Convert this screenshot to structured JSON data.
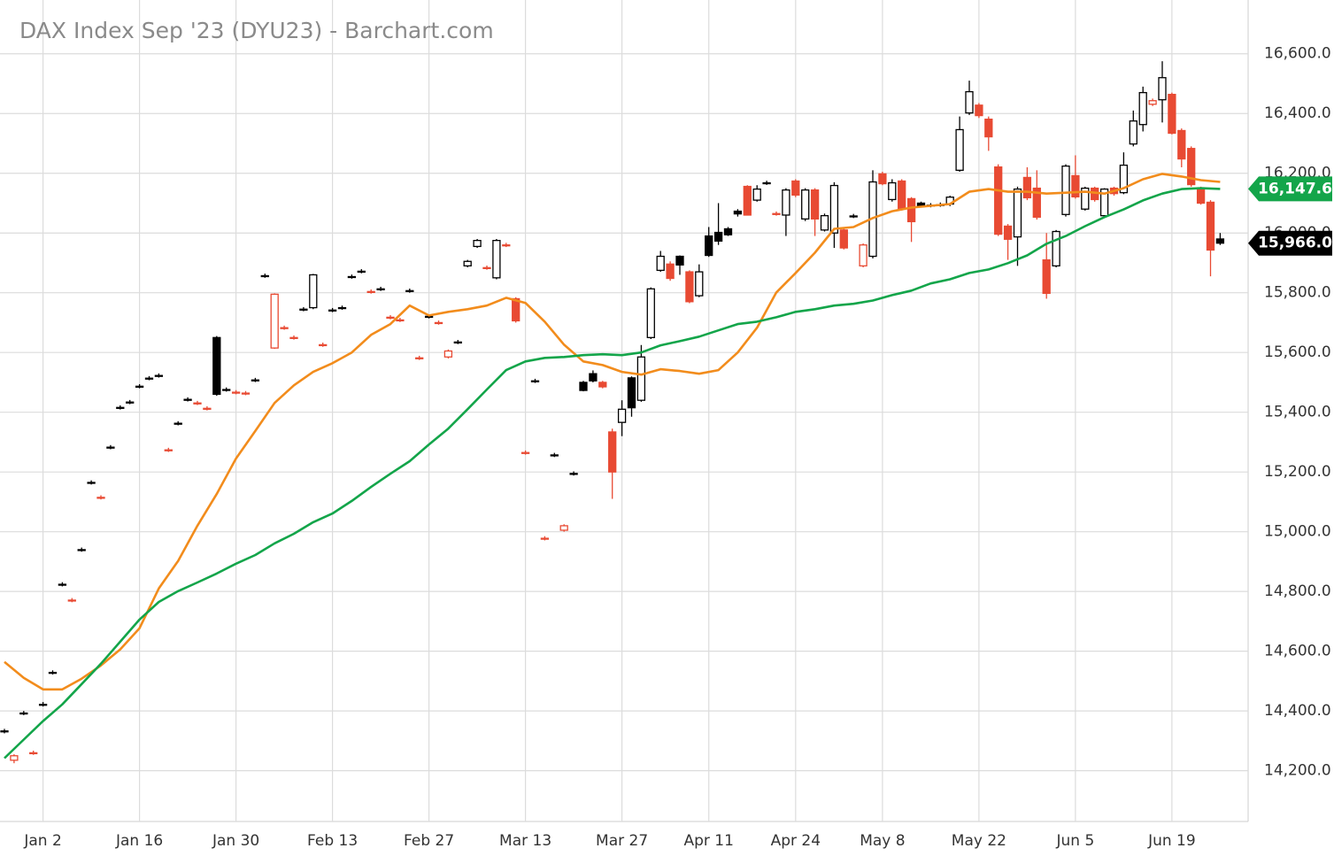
{
  "chart_data": {
    "type": "candlestick",
    "title": "DAX Index Sep '23 (DYU23) - Barchart.com",
    "categories": [
      null,
      null,
      null,
      null,
      "Jan 2",
      null,
      null,
      null,
      null,
      null,
      null,
      null,
      null,
      null,
      "Jan 16",
      null,
      null,
      null,
      null,
      null,
      null,
      null,
      null,
      null,
      "Jan 30",
      null,
      null,
      null,
      null,
      null,
      null,
      null,
      null,
      null,
      "Feb 13",
      null,
      null,
      null,
      null,
      null,
      null,
      null,
      null,
      null,
      "Feb 27",
      null,
      null,
      null,
      null,
      null,
      null,
      null,
      null,
      null,
      "Mar 13",
      null,
      null,
      null,
      null,
      null,
      null,
      null,
      null,
      null,
      "Mar 27",
      null,
      null,
      null,
      null,
      null,
      null,
      null,
      null,
      "Apr 11",
      null,
      null,
      null,
      null,
      null,
      null,
      null,
      null,
      "Apr 24",
      null,
      null,
      null,
      null,
      null,
      null,
      null,
      null,
      "May 8",
      null,
      null,
      null,
      null,
      null,
      null,
      null,
      null,
      null,
      "May 22",
      null,
      null,
      null,
      null,
      null,
      null,
      null,
      null,
      null,
      "Jun 5",
      null,
      null,
      null,
      null,
      null,
      null,
      null,
      null,
      null,
      "Jun 19",
      null,
      null,
      null,
      null,
      null
    ],
    "open": [
      14333,
      14235,
      14393,
      14260,
      14422,
      14529,
      14824,
      14771,
      14940,
      15165,
      15115,
      15283,
      15416,
      15434,
      15487,
      15514,
      15523,
      15274,
      15363,
      15443,
      15431,
      15413,
      15650,
      15476,
      15467,
      15464,
      15508,
      15857,
      15615,
      15683,
      15650,
      15745,
      15750,
      15626,
      15742,
      15750,
      15854,
      15872,
      15804,
      15813,
      15718,
      15709,
      15807,
      15582,
      15721,
      15700,
      15585,
      15635,
      15890,
      15955,
      15884,
      15850,
      15960,
      15780,
      15265,
      15505,
      14978,
      15257,
      15005,
      15195,
      15500,
      15529,
      15500,
      15334,
      15366,
      15515,
      15440,
      15650,
      15875,
      15896,
      15922,
      15870,
      15790,
      15990,
      16002,
      16014,
      16073,
      16156,
      16110,
      16168,
      16065,
      16060,
      16174,
      16047,
      16144,
      16010,
      16000,
      16010,
      16057,
      15890,
      15922,
      16198,
      16112,
      16174,
      16115,
      16100,
      16093,
      16095,
      16097,
      16210,
      16402,
      16428,
      16381,
      16221,
      16023,
      15987,
      16186,
      16150,
      15910,
      15890,
      16062,
      16192,
      16080,
      16150,
      16058,
      16150,
      16135,
      16298,
      16363,
      16431,
      16446,
      16464,
      16343,
      16283,
      16147,
      16103,
      15980
    ],
    "high": [
      14340,
      14255,
      14400,
      14267,
      14430,
      14536,
      14831,
      14778,
      14947,
      15172,
      15122,
      15290,
      15423,
      15441,
      15494,
      15521,
      15530,
      15281,
      15370,
      15450,
      15438,
      15420,
      15655,
      15483,
      15474,
      15471,
      15515,
      15864,
      15798,
      15690,
      15657,
      15752,
      15863,
      15633,
      15749,
      15757,
      15861,
      15879,
      15811,
      15820,
      15725,
      15716,
      15814,
      15589,
      15728,
      15707,
      15610,
      15642,
      15910,
      15980,
      15891,
      15980,
      15967,
      15785,
      15272,
      15512,
      14985,
      15264,
      15025,
      15202,
      15505,
      15540,
      15505,
      15345,
      15440,
      15520,
      15625,
      15818,
      15940,
      15905,
      15925,
      15875,
      15895,
      16020,
      16100,
      16020,
      16080,
      16160,
      16160,
      16175,
      16072,
      16150,
      16180,
      16150,
      16150,
      16065,
      16170,
      16015,
      16064,
      15965,
      16210,
      16205,
      16180,
      16180,
      16120,
      16105,
      16100,
      16102,
      16125,
      16390,
      16510,
      16435,
      16390,
      16230,
      16030,
      16155,
      16220,
      16210,
      16000,
      16010,
      16230,
      16260,
      16155,
      16155,
      16150,
      16155,
      16270,
      16410,
      16490,
      16450,
      16575,
      16470,
      16350,
      16290,
      16155,
      16110,
      16000
    ],
    "low": [
      14325,
      14225,
      14386,
      14253,
      14415,
      14522,
      14817,
      14764,
      14933,
      15158,
      15108,
      15276,
      15409,
      15427,
      15480,
      15507,
      15516,
      15267,
      15356,
      15436,
      15424,
      15406,
      15455,
      15469,
      15460,
      15457,
      15501,
      15850,
      15612,
      15676,
      15643,
      15738,
      15745,
      15619,
      15735,
      15743,
      15847,
      15865,
      15797,
      15806,
      15711,
      15702,
      15800,
      15575,
      15714,
      15693,
      15580,
      15628,
      15885,
      15950,
      15877,
      15845,
      15953,
      15700,
      15258,
      15498,
      14971,
      15250,
      15000,
      15188,
      15470,
      15500,
      15480,
      15110,
      15320,
      15385,
      15435,
      15645,
      15870,
      15840,
      15860,
      15765,
      15785,
      15920,
      15960,
      15990,
      16055,
      16060,
      16105,
      16161,
      16058,
      15990,
      16120,
      16040,
      15990,
      16005,
      15950,
      15945,
      16050,
      15885,
      15915,
      16160,
      16105,
      16075,
      15970,
      16085,
      16086,
      16088,
      16090,
      16205,
      16395,
      16385,
      16275,
      15990,
      15910,
      15890,
      16110,
      16045,
      15780,
      15885,
      16055,
      16115,
      16075,
      16105,
      16050,
      16125,
      16130,
      16290,
      16340,
      16425,
      16370,
      16330,
      16220,
      16155,
      16095,
      15855,
      15960
    ],
    "close": [
      14333,
      14250,
      14393,
      14260,
      14422,
      14529,
      14824,
      14771,
      14940,
      15165,
      15115,
      15283,
      15416,
      15434,
      15487,
      15514,
      15523,
      15274,
      15363,
      15443,
      15431,
      15413,
      15460,
      15476,
      15467,
      15464,
      15508,
      15857,
      15795,
      15683,
      15650,
      15745,
      15860,
      15626,
      15742,
      15750,
      15854,
      15872,
      15804,
      15813,
      15718,
      15709,
      15807,
      15582,
      15721,
      15700,
      15605,
      15635,
      15905,
      15975,
      15884,
      15975,
      15960,
      15706,
      15265,
      15505,
      14978,
      15257,
      15020,
      15195,
      15473,
      15505,
      15485,
      15200,
      15410,
      15415,
      15585,
      15813,
      15922,
      15848,
      15893,
      15770,
      15870,
      15925,
      15973,
      15994,
      16064,
      16060,
      16147,
      16168,
      16065,
      16144,
      16127,
      16144,
      16047,
      16058,
      16159,
      15950,
      16057,
      15960,
      16171,
      16165,
      16168,
      16080,
      16038,
      16091,
      16093,
      16095,
      16120,
      16346,
      16473,
      16393,
      16322,
      15996,
      15979,
      16147,
      16118,
      16053,
      15798,
      16005,
      16224,
      16121,
      16150,
      16112,
      16147,
      16132,
      16227,
      16375,
      16470,
      16443,
      16520,
      16334,
      16248,
      16162,
      16100,
      15943,
      15966
    ],
    "last_close_label": "15,966.0",
    "up_color": "#000000",
    "down_color": "#e84a33",
    "series": [
      {
        "color": "#f28c1c",
        "x": [
          0,
          2,
          4,
          6,
          8,
          10,
          12,
          14,
          16,
          18,
          20,
          22,
          24,
          26,
          28,
          30,
          32,
          34,
          36,
          38,
          40,
          42,
          44,
          46,
          48,
          50,
          52,
          54,
          56,
          58,
          60,
          62,
          64,
          66,
          68,
          70,
          72,
          74,
          76,
          78,
          80,
          82,
          84,
          86,
          88,
          90,
          92,
          94,
          96,
          98,
          100,
          102,
          104,
          106,
          108,
          110,
          112,
          114,
          116,
          118,
          120,
          122,
          124,
          126
        ],
        "values": [
          14564,
          14511,
          14472,
          14472,
          14508,
          14552,
          14606,
          14677,
          14810,
          14902,
          15020,
          15126,
          15245,
          15337,
          15431,
          15490,
          15535,
          15564,
          15600,
          15659,
          15695,
          15757,
          15724,
          15736,
          15745,
          15757,
          15783,
          15766,
          15703,
          15626,
          15570,
          15558,
          15535,
          15526,
          15544,
          15538,
          15529,
          15541,
          15600,
          15683,
          15801,
          15866,
          15934,
          16014,
          16020,
          16050,
          16073,
          16085,
          16091,
          16097,
          16138,
          16147,
          16138,
          16138,
          16132,
          16135,
          16138,
          16132,
          16150,
          16180,
          16198,
          16189,
          16177,
          16171
        ]
      },
      {
        "color": "#13a54a",
        "x": [
          0,
          2,
          4,
          6,
          8,
          10,
          12,
          14,
          16,
          18,
          20,
          22,
          24,
          26,
          28,
          30,
          32,
          34,
          36,
          38,
          40,
          42,
          44,
          46,
          48,
          50,
          52,
          54,
          56,
          58,
          60,
          62,
          64,
          66,
          68,
          70,
          72,
          74,
          76,
          78,
          80,
          82,
          84,
          86,
          88,
          90,
          92,
          94,
          96,
          98,
          100,
          102,
          104,
          106,
          108,
          110,
          112,
          114,
          116,
          118,
          120,
          122,
          124,
          126
        ],
        "values": [
          14242,
          14304,
          14366,
          14422,
          14490,
          14558,
          14632,
          14706,
          14765,
          14801,
          14830,
          14860,
          14893,
          14922,
          14961,
          14993,
          15032,
          15061,
          15103,
          15150,
          15194,
          15236,
          15292,
          15345,
          15410,
          15476,
          15541,
          15570,
          15582,
          15585,
          15591,
          15594,
          15591,
          15600,
          15624,
          15638,
          15653,
          15674,
          15695,
          15703,
          15718,
          15736,
          15745,
          15757,
          15763,
          15774,
          15792,
          15807,
          15831,
          15845,
          15866,
          15878,
          15899,
          15925,
          15964,
          15990,
          16023,
          16053,
          16079,
          16109,
          16132,
          16147,
          16150,
          16147.6
        ],
        "last_label": "16,147.6"
      }
    ],
    "ylim": [
      14030,
      16780
    ],
    "yticks": [
      {
        "value": 14200,
        "label": "14,200.0"
      },
      {
        "value": 14400,
        "label": "14,400.0"
      },
      {
        "value": 14600,
        "label": "14,600.0"
      },
      {
        "value": 14800,
        "label": "14,800.0"
      },
      {
        "value": 15000,
        "label": "15,000.0"
      },
      {
        "value": 15200,
        "label": "15,200.0"
      },
      {
        "value": 15400,
        "label": "15,400.0"
      },
      {
        "value": 15600,
        "label": "15,600.0"
      },
      {
        "value": 15800,
        "label": "15,800.0"
      },
      {
        "value": 16000,
        "label": "16,000.0"
      },
      {
        "value": 16200,
        "label": "16,200.0"
      },
      {
        "value": 16400,
        "label": "16,400.0"
      },
      {
        "value": 16600,
        "label": "16,600.0"
      }
    ],
    "grid": true
  }
}
